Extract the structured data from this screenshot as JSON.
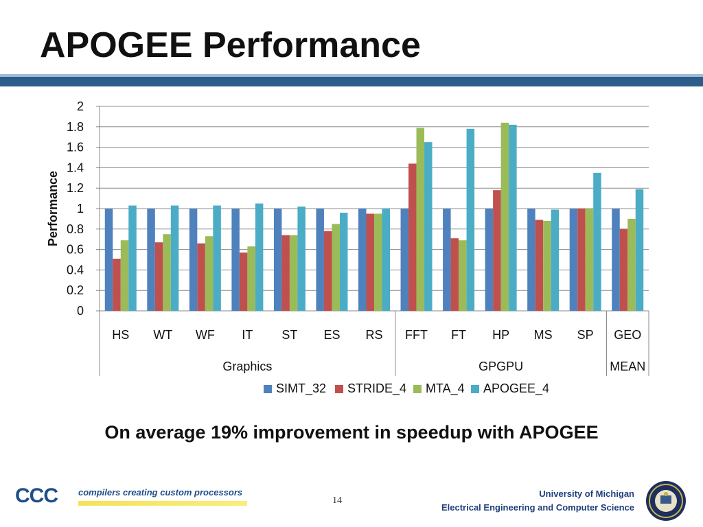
{
  "slide": {
    "title": "APOGEE Performance",
    "callout": "On average 19% improvement in speedup with APOGEE",
    "page_number": "14",
    "footer_line1": "University of Michigan",
    "footer_line2": "Electrical Engineering and Computer Science",
    "logo_mark": "CCC",
    "logo_tagline": "compilers creating custom processors"
  },
  "chart_data": {
    "type": "bar",
    "ylabel": "Performance",
    "ylim": [
      0,
      2
    ],
    "yticks": [
      "0",
      "0.2",
      "0.4",
      "0.6",
      "0.8",
      "1",
      "1.2",
      "1.4",
      "1.6",
      "1.8",
      "2"
    ],
    "categories": [
      "HS",
      "WT",
      "WF",
      "IT",
      "ST",
      "ES",
      "RS",
      "FFT",
      "FT",
      "HP",
      "MS",
      "SP",
      "GEO"
    ],
    "groups": [
      {
        "label": "Graphics",
        "start": 0,
        "end": 6
      },
      {
        "label": "GPGPU",
        "start": 7,
        "end": 11
      },
      {
        "label": "MEAN",
        "start": 12,
        "end": 12
      }
    ],
    "series": [
      {
        "name": "SIMT_32",
        "color": "#4f81bd",
        "values": [
          1,
          1,
          1,
          1,
          1,
          1,
          1,
          1,
          1,
          1,
          1,
          1,
          1
        ]
      },
      {
        "name": "STRIDE_4",
        "color": "#c0504d",
        "values": [
          0.51,
          0.67,
          0.66,
          0.57,
          0.74,
          0.78,
          0.95,
          1.44,
          0.71,
          1.18,
          0.89,
          1.0,
          0.8
        ]
      },
      {
        "name": "MTA_4",
        "color": "#9bbb59",
        "values": [
          0.69,
          0.75,
          0.73,
          0.63,
          0.74,
          0.85,
          0.95,
          1.79,
          0.69,
          1.84,
          0.88,
          1.0,
          0.9
        ]
      },
      {
        "name": "APOGEE_4",
        "color": "#4bacc6",
        "values": [
          1.03,
          1.03,
          1.03,
          1.05,
          1.02,
          0.96,
          1.0,
          1.65,
          1.78,
          1.82,
          0.99,
          1.35,
          1.19
        ]
      }
    ],
    "legend_position": "bottom",
    "grid": true
  }
}
